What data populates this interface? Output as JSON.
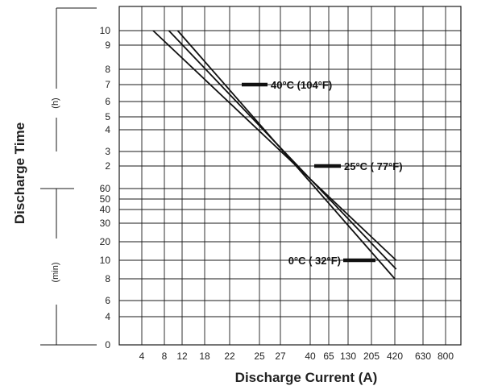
{
  "chart_data": {
    "type": "line",
    "xlabel": "Discharge Current (A)",
    "ylabel": "Discharge Time",
    "x_ticks": [
      "4",
      "8",
      "12",
      "18",
      "22",
      "25",
      "27",
      "40",
      "65",
      "130",
      "205",
      "420",
      "630",
      "800"
    ],
    "y_ticks_hours": [
      "10",
      "9",
      "8",
      "7",
      "6",
      "5",
      "4",
      "3",
      "2"
    ],
    "y_ticks_minutes": [
      "60",
      "50",
      "40",
      "30",
      "20",
      "10",
      "8",
      "6",
      "4",
      "0"
    ],
    "y_unit_hours": "(h)",
    "y_unit_minutes": "(min)",
    "series": [
      {
        "name": "40°C (104°F)",
        "points": [
          [
            "6",
            "10 h"
          ],
          [
            "430",
            "10 min"
          ]
        ]
      },
      {
        "name": "25°C ( 77°F)",
        "points": [
          [
            "9",
            "10 h"
          ],
          [
            "430",
            "9 min"
          ]
        ]
      },
      {
        "name": "0°C ( 32°F)",
        "points": [
          [
            "11",
            "10 h"
          ],
          [
            "420",
            "8 min"
          ]
        ]
      }
    ],
    "grid": true
  },
  "colors": {
    "line": "#111111",
    "background": "#ffffff"
  }
}
